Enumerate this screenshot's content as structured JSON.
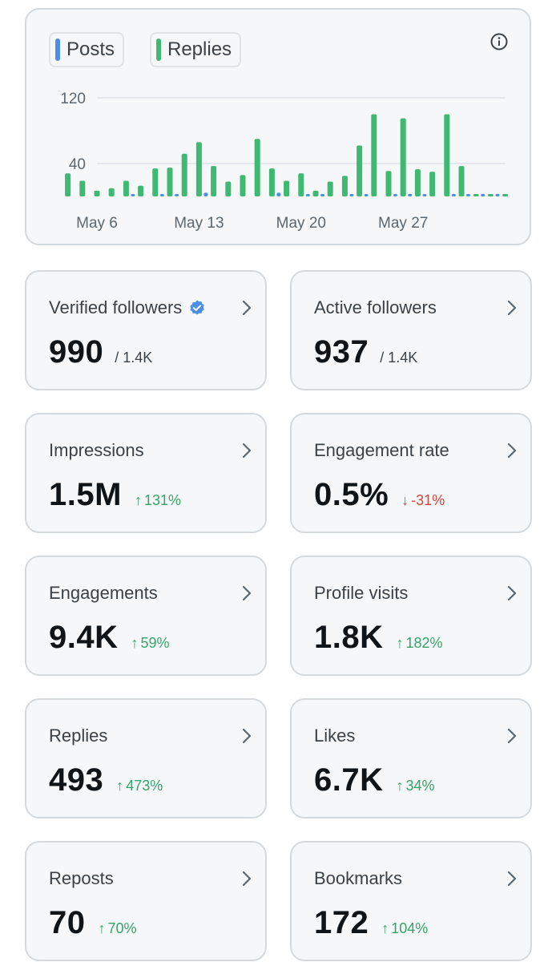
{
  "colors": {
    "posts": "#4a8fe6",
    "replies": "#3fb873",
    "positive": "#36a36a",
    "negative": "#d8453e",
    "verified": "#4a8fe6"
  },
  "legend": {
    "posts_label": "Posts",
    "replies_label": "Replies"
  },
  "chart_data": {
    "type": "bar",
    "title": "",
    "xlabel": "",
    "ylabel": "",
    "ylim": [
      0,
      125
    ],
    "yticks": [
      "40",
      "120"
    ],
    "ytick_values": [
      40,
      120
    ],
    "xticks": [
      "May 6",
      "May 13",
      "May 20",
      "May 27"
    ],
    "xtick_days": [
      6,
      13,
      20,
      27
    ],
    "days": [
      4,
      5,
      6,
      7,
      8,
      9,
      10,
      11,
      12,
      13,
      14,
      15,
      16,
      17,
      18,
      19,
      20,
      21,
      22,
      23,
      24,
      25,
      26,
      27,
      28,
      29,
      30,
      31,
      32,
      33,
      34
    ],
    "series": [
      {
        "name": "Posts",
        "values": [
          0,
          0,
          0,
          0,
          1,
          0,
          1,
          1,
          0,
          3,
          0,
          0,
          0,
          0,
          3,
          0,
          1,
          1,
          0,
          1,
          1,
          0,
          1,
          2,
          1,
          0,
          2,
          1,
          2,
          2,
          0
        ]
      },
      {
        "name": "Replies",
        "values": [
          28,
          19,
          7,
          10,
          19,
          13,
          34,
          35,
          52,
          66,
          37,
          18,
          26,
          70,
          34,
          19,
          28,
          7,
          18,
          25,
          62,
          100,
          31,
          95,
          33,
          30,
          100,
          37,
          0,
          0,
          0
        ]
      }
    ]
  },
  "stats": [
    {
      "label": "Verified followers",
      "value": "990",
      "sub": "/ 1.4K",
      "verified": true
    },
    {
      "label": "Active followers",
      "value": "937",
      "sub": "/ 1.4K"
    },
    {
      "label": "Impressions",
      "value": "1.5M",
      "delta": "131%",
      "dir": "up"
    },
    {
      "label": "Engagement rate",
      "value": "0.5%",
      "delta": "-31%",
      "dir": "down"
    },
    {
      "label": "Engagements",
      "value": "9.4K",
      "delta": "59%",
      "dir": "up"
    },
    {
      "label": "Profile visits",
      "value": "1.8K",
      "delta": "182%",
      "dir": "up"
    },
    {
      "label": "Replies",
      "value": "493",
      "delta": "473%",
      "dir": "up"
    },
    {
      "label": "Likes",
      "value": "6.7K",
      "delta": "34%",
      "dir": "up"
    },
    {
      "label": "Reposts",
      "value": "70",
      "delta": "70%",
      "dir": "up"
    },
    {
      "label": "Bookmarks",
      "value": "172",
      "delta": "104%",
      "dir": "up"
    }
  ],
  "icons": {
    "info": "info-icon",
    "chevron": "chevron-right-icon",
    "verified": "verified-badge-icon",
    "up": "arrow-up-icon",
    "down": "arrow-down-icon"
  }
}
